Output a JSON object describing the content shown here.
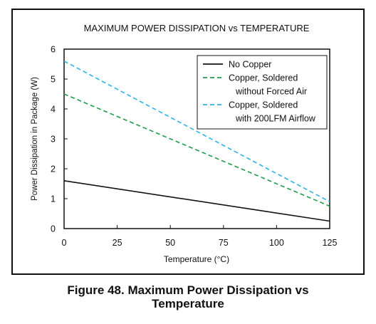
{
  "chart_data": {
    "type": "line",
    "title": "MAXIMUM POWER DISSIPATION vs TEMPERATURE",
    "xlabel": "Temperature (°C)",
    "ylabel": "Power Dissipation in Package (W)",
    "xlim": [
      0,
      125
    ],
    "ylim": [
      0,
      6
    ],
    "xticks": [
      0,
      25,
      50,
      75,
      100,
      125
    ],
    "yticks": [
      0,
      1,
      2,
      3,
      4,
      5,
      6
    ],
    "grid": false,
    "legend_position": "top-right",
    "series": [
      {
        "legend": [
          "No Copper"
        ],
        "color": "#111111",
        "style": "solid",
        "x": [
          0,
          125
        ],
        "y": [
          1.6,
          0.25
        ]
      },
      {
        "legend": [
          "Copper, Soldered",
          "without Forced Air"
        ],
        "color": "#1e9c4a",
        "style": "dashed",
        "x": [
          0,
          125
        ],
        "y": [
          4.5,
          0.75
        ]
      },
      {
        "legend": [
          "Copper, Soldered",
          "with 200LFM Airflow"
        ],
        "color": "#29b3e6",
        "style": "dashed",
        "x": [
          0,
          125
        ],
        "y": [
          5.6,
          0.9
        ]
      }
    ]
  },
  "caption": {
    "line1": "Figure 48.  Maximum Power Dissipation vs",
    "line2": "Temperature"
  }
}
